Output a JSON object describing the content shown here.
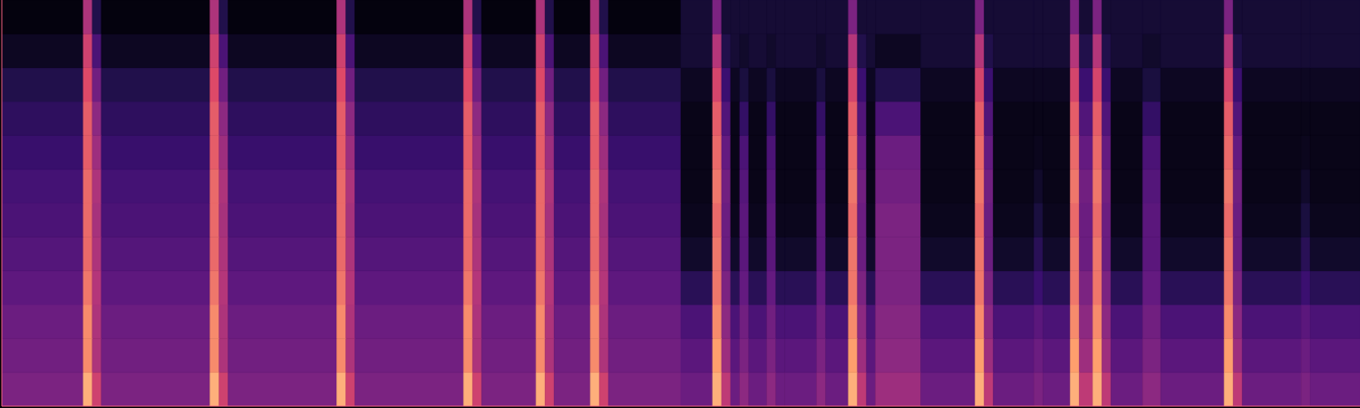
{
  "chart_data": {
    "type": "heatmap",
    "tick_labels": false,
    "xlim": [
      0,
      150
    ],
    "ylim": [
      0,
      12
    ],
    "zlim": [
      0,
      1
    ],
    "x": [
      0,
      9,
      10,
      11,
      23,
      24,
      25,
      37,
      38,
      39,
      51,
      52,
      53,
      59,
      60,
      61,
      65,
      66,
      67,
      75,
      78.5,
      79.5,
      80.5,
      81.5,
      82.5,
      84.5,
      85.5,
      86.5,
      90,
      91,
      93.5,
      94.5,
      95.5,
      96.5,
      101.5,
      107.5,
      108.5,
      109.5,
      114,
      115,
      118,
      119,
      120.5,
      121.5,
      122.5,
      126,
      128,
      135,
      136,
      137,
      143.5,
      144.5,
      150
    ],
    "y": [
      0,
      1,
      2,
      3,
      4,
      5,
      6,
      7,
      8,
      9,
      10,
      11,
      12
    ],
    "cells": [
      [
        0.45,
        0.9,
        0.7,
        0.45,
        0.9,
        0.7,
        0.45,
        0.9,
        0.7,
        0.45,
        0.9,
        0.7,
        0.45,
        0.9,
        0.7,
        0.45,
        0.9,
        0.7,
        0.45,
        0.4,
        0.9,
        0.65,
        0.4,
        0.5,
        0.4,
        0.5,
        0.4,
        0.4,
        0.5,
        0.4,
        0.9,
        0.65,
        0.4,
        0.55,
        0.4,
        0.9,
        0.65,
        0.4,
        0.45,
        0.4,
        0.9,
        0.65,
        0.9,
        0.65,
        0.4,
        0.5,
        0.4,
        0.9,
        0.65,
        0.4,
        0.45,
        0.4
      ],
      [
        0.42,
        0.85,
        0.6,
        0.42,
        0.85,
        0.6,
        0.42,
        0.85,
        0.6,
        0.42,
        0.85,
        0.6,
        0.42,
        0.85,
        0.6,
        0.42,
        0.85,
        0.6,
        0.42,
        0.35,
        0.88,
        0.55,
        0.35,
        0.45,
        0.35,
        0.45,
        0.35,
        0.35,
        0.45,
        0.35,
        0.88,
        0.55,
        0.35,
        0.5,
        0.35,
        0.88,
        0.55,
        0.35,
        0.4,
        0.35,
        0.88,
        0.55,
        0.88,
        0.55,
        0.35,
        0.45,
        0.35,
        0.88,
        0.55,
        0.35,
        0.4,
        0.35
      ],
      [
        0.4,
        0.85,
        0.6,
        0.4,
        0.85,
        0.6,
        0.4,
        0.85,
        0.6,
        0.4,
        0.85,
        0.6,
        0.4,
        0.85,
        0.6,
        0.4,
        0.85,
        0.6,
        0.4,
        0.3,
        0.85,
        0.5,
        0.3,
        0.42,
        0.3,
        0.42,
        0.3,
        0.3,
        0.42,
        0.3,
        0.85,
        0.5,
        0.3,
        0.48,
        0.3,
        0.85,
        0.5,
        0.3,
        0.35,
        0.3,
        0.85,
        0.5,
        0.85,
        0.5,
        0.3,
        0.42,
        0.3,
        0.85,
        0.5,
        0.3,
        0.35,
        0.3
      ],
      [
        0.36,
        0.82,
        0.62,
        0.36,
        0.82,
        0.62,
        0.36,
        0.82,
        0.62,
        0.36,
        0.82,
        0.62,
        0.36,
        0.82,
        0.62,
        0.36,
        0.82,
        0.62,
        0.36,
        0.18,
        0.82,
        0.45,
        0.18,
        0.38,
        0.18,
        0.38,
        0.18,
        0.18,
        0.38,
        0.18,
        0.82,
        0.45,
        0.18,
        0.45,
        0.18,
        0.82,
        0.45,
        0.18,
        0.25,
        0.18,
        0.82,
        0.45,
        0.82,
        0.45,
        0.18,
        0.38,
        0.18,
        0.82,
        0.45,
        0.18,
        0.25,
        0.18
      ],
      [
        0.33,
        0.8,
        0.6,
        0.33,
        0.8,
        0.6,
        0.33,
        0.8,
        0.6,
        0.33,
        0.8,
        0.6,
        0.33,
        0.8,
        0.6,
        0.33,
        0.8,
        0.6,
        0.33,
        0.08,
        0.82,
        0.4,
        0.08,
        0.35,
        0.08,
        0.35,
        0.08,
        0.08,
        0.35,
        0.08,
        0.82,
        0.4,
        0.08,
        0.45,
        0.08,
        0.82,
        0.4,
        0.08,
        0.18,
        0.08,
        0.82,
        0.4,
        0.82,
        0.4,
        0.08,
        0.35,
        0.08,
        0.82,
        0.4,
        0.08,
        0.18,
        0.08
      ],
      [
        0.3,
        0.8,
        0.58,
        0.3,
        0.8,
        0.58,
        0.3,
        0.8,
        0.58,
        0.3,
        0.8,
        0.58,
        0.3,
        0.8,
        0.58,
        0.3,
        0.8,
        0.58,
        0.3,
        0.05,
        0.8,
        0.4,
        0.05,
        0.35,
        0.05,
        0.35,
        0.05,
        0.05,
        0.35,
        0.05,
        0.8,
        0.4,
        0.05,
        0.45,
        0.05,
        0.8,
        0.4,
        0.05,
        0.12,
        0.05,
        0.8,
        0.4,
        0.8,
        0.4,
        0.05,
        0.35,
        0.05,
        0.8,
        0.4,
        0.05,
        0.12,
        0.05
      ],
      [
        0.28,
        0.8,
        0.6,
        0.28,
        0.8,
        0.6,
        0.28,
        0.8,
        0.6,
        0.28,
        0.8,
        0.6,
        0.28,
        0.8,
        0.6,
        0.28,
        0.8,
        0.6,
        0.28,
        0.04,
        0.82,
        0.42,
        0.04,
        0.33,
        0.04,
        0.33,
        0.04,
        0.04,
        0.33,
        0.04,
        0.82,
        0.42,
        0.04,
        0.42,
        0.04,
        0.82,
        0.42,
        0.04,
        0.08,
        0.04,
        0.82,
        0.42,
        0.82,
        0.42,
        0.04,
        0.33,
        0.04,
        0.82,
        0.42,
        0.04,
        0.08,
        0.04
      ],
      [
        0.24,
        0.78,
        0.55,
        0.24,
        0.78,
        0.55,
        0.24,
        0.78,
        0.55,
        0.24,
        0.78,
        0.55,
        0.24,
        0.78,
        0.55,
        0.24,
        0.78,
        0.55,
        0.24,
        0.04,
        0.8,
        0.38,
        0.04,
        0.3,
        0.04,
        0.3,
        0.04,
        0.04,
        0.3,
        0.04,
        0.8,
        0.38,
        0.04,
        0.4,
        0.04,
        0.8,
        0.38,
        0.04,
        0.05,
        0.04,
        0.8,
        0.38,
        0.8,
        0.38,
        0.04,
        0.3,
        0.04,
        0.8,
        0.38,
        0.04,
        0.05,
        0.04
      ],
      [
        0.2,
        0.78,
        0.5,
        0.2,
        0.78,
        0.5,
        0.2,
        0.78,
        0.5,
        0.2,
        0.78,
        0.5,
        0.2,
        0.78,
        0.5,
        0.2,
        0.78,
        0.5,
        0.2,
        0.04,
        0.78,
        0.32,
        0.04,
        0.22,
        0.04,
        0.22,
        0.04,
        0.04,
        0.22,
        0.04,
        0.78,
        0.32,
        0.04,
        0.3,
        0.04,
        0.78,
        0.32,
        0.04,
        0.04,
        0.04,
        0.78,
        0.32,
        0.78,
        0.32,
        0.04,
        0.22,
        0.04,
        0.78,
        0.32,
        0.04,
        0.04,
        0.04
      ],
      [
        0.15,
        0.75,
        0.42,
        0.15,
        0.75,
        0.42,
        0.15,
        0.75,
        0.42,
        0.15,
        0.75,
        0.42,
        0.15,
        0.75,
        0.42,
        0.15,
        0.75,
        0.42,
        0.15,
        0.06,
        0.72,
        0.25,
        0.06,
        0.12,
        0.06,
        0.12,
        0.06,
        0.06,
        0.12,
        0.06,
        0.72,
        0.25,
        0.06,
        0.15,
        0.06,
        0.72,
        0.25,
        0.06,
        0.06,
        0.06,
        0.72,
        0.25,
        0.72,
        0.25,
        0.06,
        0.12,
        0.06,
        0.72,
        0.25,
        0.06,
        0.06,
        0.06
      ],
      [
        0.06,
        0.7,
        0.3,
        0.06,
        0.7,
        0.3,
        0.06,
        0.7,
        0.3,
        0.06,
        0.7,
        0.3,
        0.06,
        0.7,
        0.3,
        0.06,
        0.7,
        0.3,
        0.06,
        0.1,
        0.62,
        0.15,
        0.1,
        0.08,
        0.1,
        0.08,
        0.1,
        0.1,
        0.08,
        0.1,
        0.62,
        0.15,
        0.1,
        0.06,
        0.1,
        0.62,
        0.15,
        0.1,
        0.1,
        0.1,
        0.62,
        0.15,
        0.62,
        0.15,
        0.1,
        0.08,
        0.1,
        0.62,
        0.15,
        0.1,
        0.1,
        0.1
      ],
      [
        0.02,
        0.6,
        0.15,
        0.02,
        0.6,
        0.15,
        0.02,
        0.6,
        0.15,
        0.02,
        0.6,
        0.15,
        0.02,
        0.6,
        0.15,
        0.02,
        0.6,
        0.15,
        0.02,
        0.1,
        0.45,
        0.1,
        0.1,
        0.1,
        0.1,
        0.1,
        0.1,
        0.1,
        0.1,
        0.1,
        0.45,
        0.1,
        0.1,
        0.1,
        0.1,
        0.45,
        0.1,
        0.1,
        0.1,
        0.1,
        0.45,
        0.1,
        0.45,
        0.1,
        0.1,
        0.1,
        0.1,
        0.45,
        0.1,
        0.1,
        0.1,
        0.1
      ]
    ]
  }
}
